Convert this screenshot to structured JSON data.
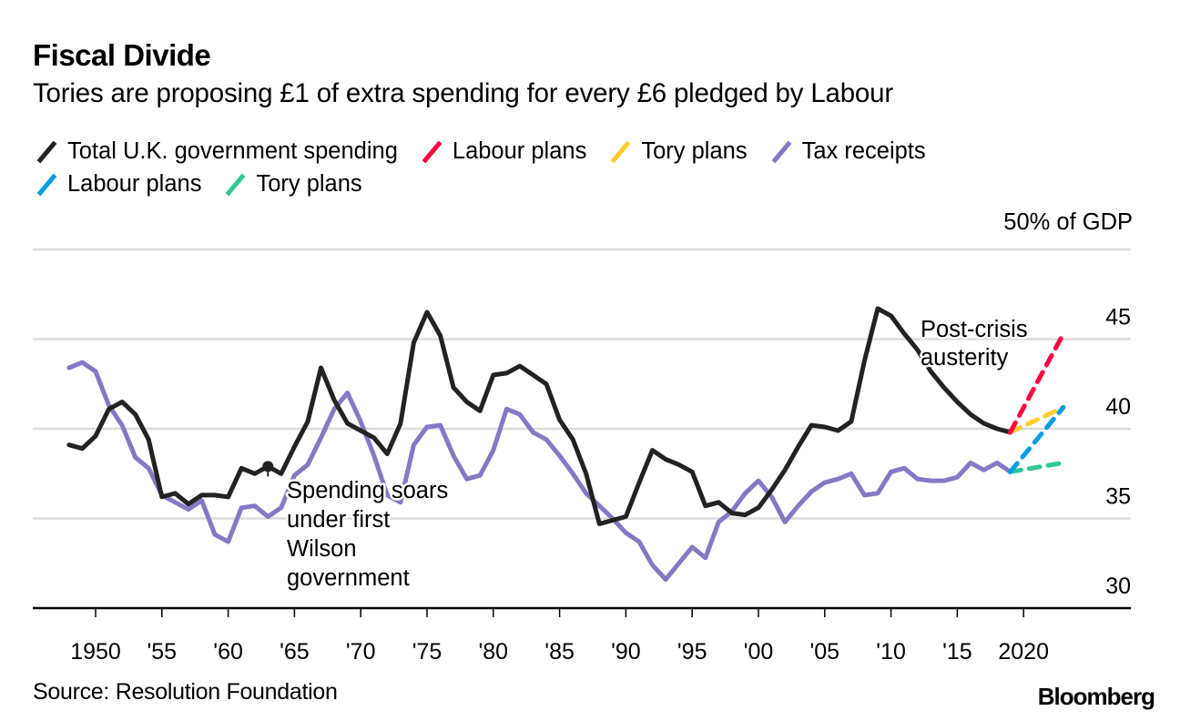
{
  "header": {
    "title": "Fiscal Divide",
    "subtitle": "Tories are proposing £1 of extra spending for every £6 pledged by Labour"
  },
  "legend": {
    "rows": [
      [
        {
          "label": "Total U.K. government spending",
          "color": "#222222"
        },
        {
          "label": "Labour plans",
          "color": "#ff0040"
        },
        {
          "label": "Tory plans",
          "color": "#ffcb2f"
        },
        {
          "label": "Tax receipts",
          "color": "#8479c4"
        }
      ],
      [
        {
          "label": "Labour plans",
          "color": "#009de5"
        },
        {
          "label": "Tory plans",
          "color": "#2fc895"
        }
      ]
    ]
  },
  "unit_label": "50% of GDP",
  "footer": {
    "source": "Source: Resolution Foundation",
    "brand": "Bloomberg"
  },
  "chart_data": {
    "type": "line",
    "title": "Fiscal Divide",
    "subtitle": "Tories are proposing £1 of extra spending for every £6 pledged by Labour",
    "xlabel": "",
    "ylabel": "% of GDP",
    "xlim": [
      1945,
      2032
    ],
    "ylim": [
      30,
      50
    ],
    "grid": true,
    "legend_position": "top-left",
    "x_ticks": [
      {
        "value": 1950,
        "label": "1950"
      },
      {
        "value": 1955,
        "label": "'55"
      },
      {
        "value": 1960,
        "label": "'60"
      },
      {
        "value": 1965,
        "label": "'65"
      },
      {
        "value": 1970,
        "label": "'70"
      },
      {
        "value": 1975,
        "label": "'75"
      },
      {
        "value": 1980,
        "label": "'80"
      },
      {
        "value": 1985,
        "label": "'85"
      },
      {
        "value": 1990,
        "label": "'90"
      },
      {
        "value": 1995,
        "label": "'95"
      },
      {
        "value": 2000,
        "label": "'00"
      },
      {
        "value": 2005,
        "label": "'05"
      },
      {
        "value": 2010,
        "label": "'10"
      },
      {
        "value": 2015,
        "label": "'15"
      },
      {
        "value": 2020,
        "label": "2020"
      }
    ],
    "y_ticks": [
      {
        "value": 30,
        "label": "30"
      },
      {
        "value": 35,
        "label": "35"
      },
      {
        "value": 40,
        "label": "40"
      },
      {
        "value": 45,
        "label": "45"
      },
      {
        "value": 50,
        "label": "50% of GDP"
      }
    ],
    "series": [
      {
        "name": "Total U.K. government spending",
        "color": "#222222",
        "style": "solid",
        "x": [
          1948,
          1949,
          1950,
          1951,
          1952,
          1953,
          1954,
          1955,
          1956,
          1957,
          1958,
          1959,
          1960,
          1961,
          1962,
          1963,
          1964,
          1965,
          1966,
          1967,
          1968,
          1969,
          1970,
          1971,
          1972,
          1973,
          1974,
          1975,
          1976,
          1977,
          1978,
          1979,
          1980,
          1981,
          1982,
          1983,
          1984,
          1985,
          1986,
          1987,
          1988,
          1989,
          1990,
          1991,
          1992,
          1993,
          1994,
          1995,
          1996,
          1997,
          1998,
          1999,
          2000,
          2001,
          2002,
          2003,
          2004,
          2005,
          2006,
          2007,
          2008,
          2009,
          2010,
          2011,
          2012,
          2013,
          2014,
          2015,
          2016,
          2017,
          2018,
          2019
        ],
        "values": [
          39.1,
          38.9,
          39.6,
          41.1,
          41.5,
          40.8,
          39.4,
          36.2,
          36.4,
          35.8,
          36.3,
          36.3,
          36.2,
          37.8,
          37.5,
          37.9,
          37.5,
          39.0,
          40.4,
          43.4,
          41.6,
          40.3,
          39.9,
          39.5,
          38.6,
          40.3,
          44.8,
          46.5,
          45.2,
          42.3,
          41.5,
          41.0,
          43.0,
          43.1,
          43.5,
          43.0,
          42.5,
          40.5,
          39.4,
          37.5,
          34.7,
          34.9,
          35.1,
          37.0,
          38.8,
          38.3,
          38.0,
          37.6,
          35.7,
          35.9,
          35.3,
          35.2,
          35.6,
          36.6,
          37.7,
          39.0,
          40.2,
          40.1,
          39.9,
          40.4,
          43.8,
          46.7,
          46.3,
          45.3,
          44.4,
          43.2,
          42.3,
          41.5,
          40.8,
          40.3,
          40.0,
          39.8
        ]
      },
      {
        "name": "Tax receipts",
        "color": "#8479c4",
        "style": "solid",
        "x": [
          1948,
          1949,
          1950,
          1951,
          1952,
          1953,
          1954,
          1955,
          1956,
          1957,
          1958,
          1959,
          1960,
          1961,
          1962,
          1963,
          1964,
          1965,
          1966,
          1967,
          1968,
          1969,
          1970,
          1971,
          1972,
          1973,
          1974,
          1975,
          1976,
          1977,
          1978,
          1979,
          1980,
          1981,
          1982,
          1983,
          1984,
          1985,
          1986,
          1987,
          1988,
          1989,
          1990,
          1991,
          1992,
          1993,
          1994,
          1995,
          1996,
          1997,
          1998,
          1999,
          2000,
          2001,
          2002,
          2003,
          2004,
          2005,
          2006,
          2007,
          2008,
          2009,
          2010,
          2011,
          2012,
          2013,
          2014,
          2015,
          2016,
          2017,
          2018,
          2019
        ],
        "values": [
          43.4,
          43.7,
          43.2,
          41.3,
          40.2,
          38.4,
          37.8,
          36.3,
          35.9,
          35.5,
          36.0,
          34.1,
          33.7,
          35.6,
          35.7,
          35.1,
          35.6,
          37.4,
          38.0,
          39.5,
          41.1,
          42.0,
          40.4,
          38.5,
          36.3,
          35.9,
          39.1,
          40.1,
          40.2,
          38.5,
          37.2,
          37.4,
          38.8,
          41.1,
          40.8,
          39.8,
          39.4,
          38.5,
          37.5,
          36.4,
          35.7,
          35.0,
          34.2,
          33.7,
          32.4,
          31.6,
          32.5,
          33.4,
          32.8,
          34.8,
          35.4,
          36.4,
          37.1,
          36.2,
          34.8,
          35.7,
          36.5,
          37.0,
          37.2,
          37.5,
          36.3,
          36.4,
          37.6,
          37.8,
          37.2,
          37.1,
          37.1,
          37.3,
          38.1,
          37.7,
          38.1,
          37.6
        ]
      },
      {
        "name": "Labour plans (spending)",
        "color": "#ff0040",
        "style": "dashed",
        "x": [
          2019,
          2023
        ],
        "values": [
          39.8,
          45.3
        ]
      },
      {
        "name": "Tory plans (spending)",
        "color": "#ffcb2f",
        "style": "dashed",
        "x": [
          2019,
          2023
        ],
        "values": [
          39.8,
          41.2
        ]
      },
      {
        "name": "Labour plans (tax)",
        "color": "#009de5",
        "style": "dashed",
        "x": [
          2019,
          2023
        ],
        "values": [
          37.6,
          41.2
        ]
      },
      {
        "name": "Tory plans (tax)",
        "color": "#2fc895",
        "style": "dashed",
        "x": [
          2019,
          2023
        ],
        "values": [
          37.6,
          38.1
        ]
      }
    ],
    "annotations": [
      {
        "text": [
          "Spending soars",
          "under first",
          "Wilson",
          "government"
        ],
        "x": 1963,
        "y": 37.9,
        "marker": true
      },
      {
        "text": [
          "Post-crisis",
          "austerity"
        ],
        "x": 2012,
        "y": 45
      }
    ]
  }
}
